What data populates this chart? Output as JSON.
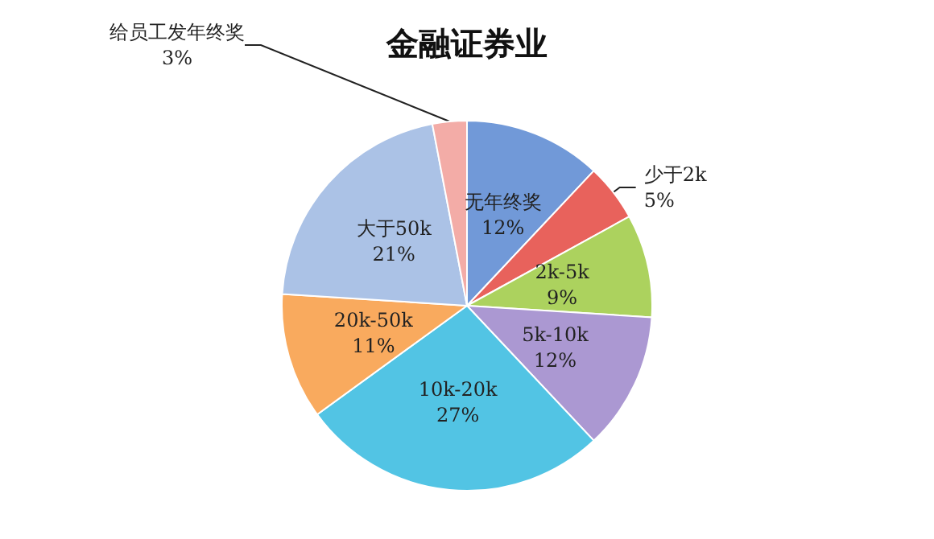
{
  "chart_data": {
    "type": "pie",
    "title": "金融证券业",
    "categories": [
      "无年终奖",
      "少于2k",
      "2k-5k",
      "5k-10k",
      "10k-20k",
      "20k-50k",
      "大于50k",
      "给员工发年终奖"
    ],
    "values": [
      12,
      5,
      9,
      12,
      27,
      11,
      21,
      3
    ],
    "value_labels": [
      "12%",
      "5%",
      "9%",
      "12%",
      "27%",
      "11%",
      "21%",
      "3%"
    ],
    "colors": [
      "#7199d8",
      "#e8625c",
      "#acd25e",
      "#ab98d2",
      "#52c4e4",
      "#f9aa5e",
      "#abc2e6",
      "#f3aca7"
    ],
    "legend": false
  }
}
